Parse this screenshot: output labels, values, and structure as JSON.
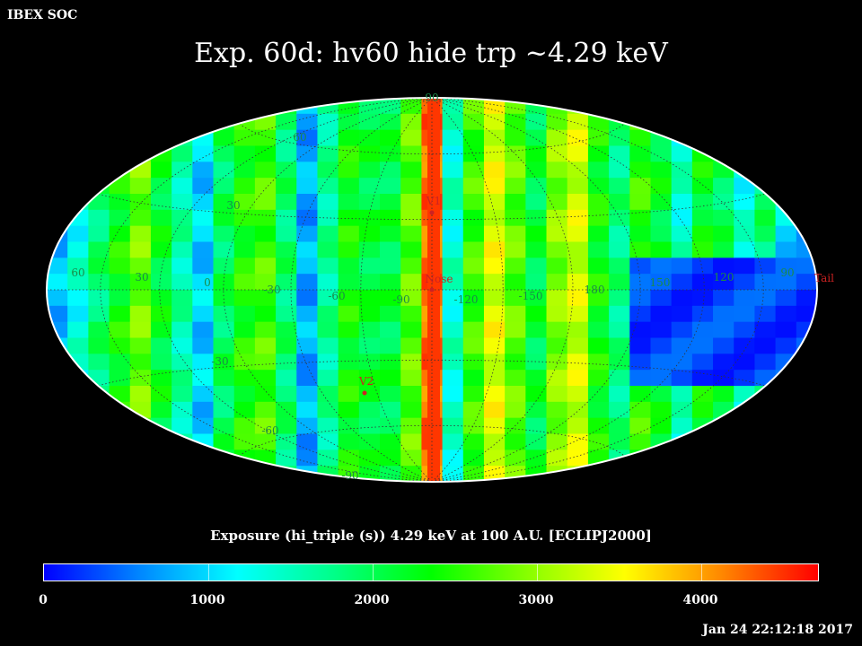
{
  "header": {
    "org": "IBEX SOC",
    "title": "Exp.   60d: hv60 hide trp ~4.29 keV"
  },
  "colorbar": {
    "title": "Exposure (hi_triple (s))  4.29 keV at 100 A.U. [ECLIPJ2000]",
    "range": [
      0,
      5000
    ],
    "ticks": [
      "0",
      "1000",
      "2000",
      "3000",
      "4000"
    ],
    "colors": [
      "#0000ff",
      "#0088ff",
      "#00ffff",
      "#00ff88",
      "#00ff00",
      "#88ff00",
      "#ffff00",
      "#ff8800",
      "#ff0000"
    ]
  },
  "map": {
    "projection": "aitoff-hammer",
    "coordinate_frame": "ECLIPJ2000",
    "lat_labels": [
      "90",
      "60",
      "30",
      "-30",
      "-60",
      "-90"
    ],
    "lon_labels": [
      "60",
      "30",
      "0",
      "-30",
      "-60",
      "-90",
      "-120",
      "-150",
      "180",
      "150",
      "120",
      "90"
    ],
    "markers": [
      {
        "name": "V1",
        "color": "#cc2222"
      },
      {
        "name": "Nose",
        "color": "#cc2222"
      },
      {
        "name": "V2",
        "color": "#cc2222"
      },
      {
        "name": "Tail",
        "color": "#cc2222"
      }
    ]
  },
  "timestamp": "Jan 24 22:12:18 2017"
}
